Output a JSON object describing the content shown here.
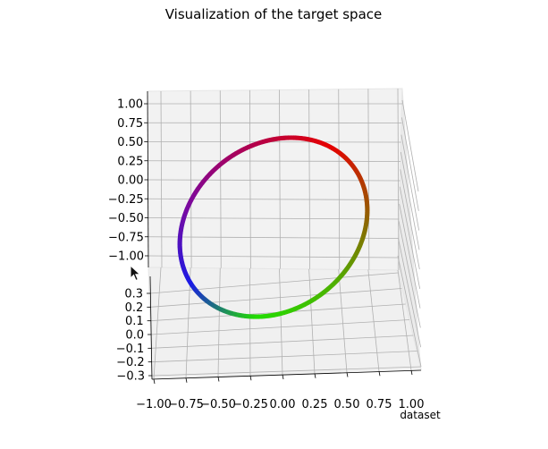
{
  "chart_data": {
    "type": "scatter3d",
    "title": "Visualization of the target space",
    "xlabel": "dataset",
    "ylabel": "",
    "zlabel": "",
    "x_ticks": [
      "−1.00",
      "−0.75",
      "−0.50",
      "−0.25",
      "0.00",
      "0.25",
      "0.50",
      "0.75",
      "1.00"
    ],
    "y_ticks": [
      "1.00",
      "0.75",
      "0.50",
      "0.25",
      "0.00",
      "−0.25",
      "−0.50",
      "−0.75",
      "−1.00"
    ],
    "z_ticks": [
      "0.3",
      "0.2",
      "0.1",
      "0.0",
      "−0.1",
      "−0.2",
      "−0.3"
    ],
    "xlim": [
      -1.0,
      1.0
    ],
    "ylim": [
      -1.0,
      1.0
    ],
    "zlim": [
      -0.3,
      0.3
    ],
    "grid": true,
    "series": [
      {
        "shape": "closed ring, unit circle in x-y, tilted in z",
        "color_by": "angle (hue wheel)",
        "colors": [
          "#e60000",
          "#9b5500",
          "#4fb000",
          "#22dd00",
          "#1a1ae6",
          "#7a0aa0",
          "#b00050"
        ]
      }
    ]
  }
}
